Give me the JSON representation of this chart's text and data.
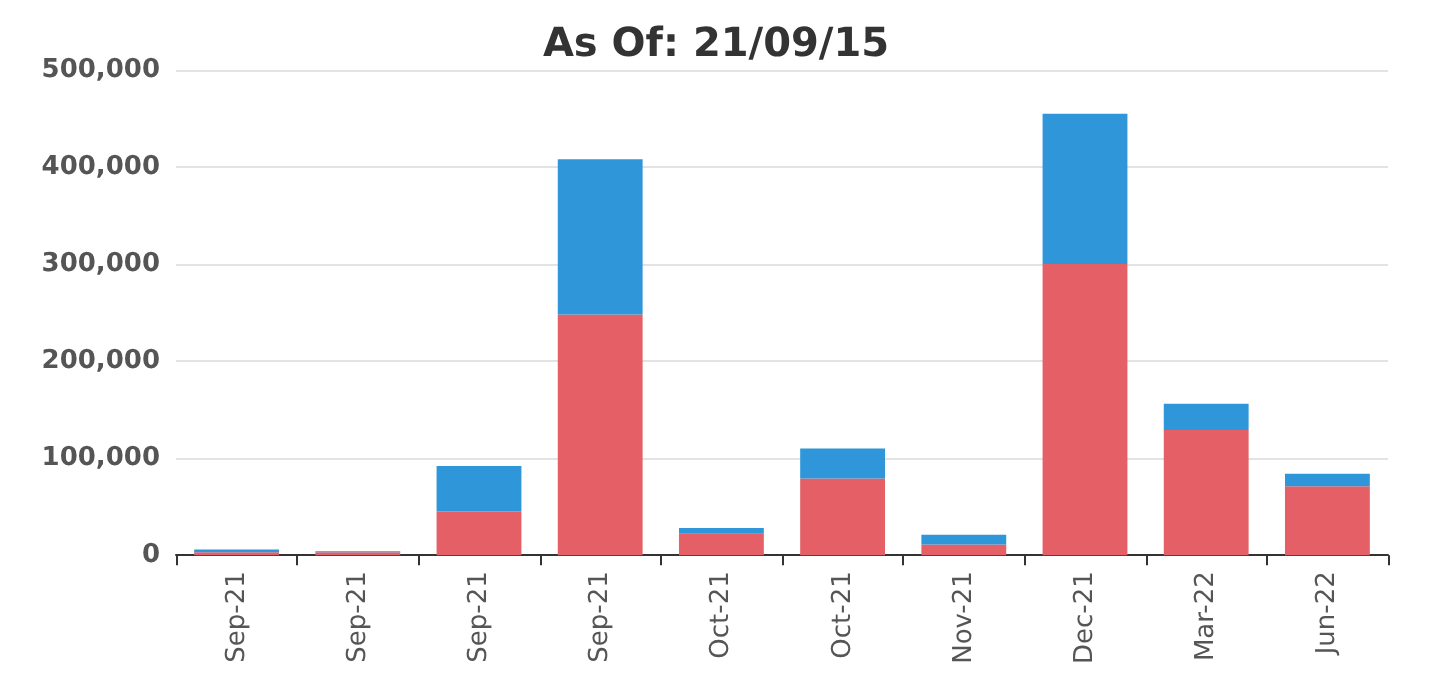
{
  "chart_data": {
    "type": "bar",
    "title": "As Of: 21/09/15",
    "stacked": true,
    "grid": "y",
    "categories": [
      "Sep-21",
      "Sep-21",
      "Sep-21",
      "Sep-21",
      "Oct-21",
      "Oct-21",
      "Nov-21",
      "Dec-21",
      "Mar-22",
      "Jun-22"
    ],
    "series": [
      {
        "color": "#e45f66",
        "values": [
          3000,
          3000,
          45000,
          248000,
          22000,
          79000,
          11000,
          300000,
          129000,
          71000
        ]
      },
      {
        "color": "#2f96d9",
        "values": [
          3000,
          1000,
          47000,
          160000,
          6000,
          31000,
          10000,
          155000,
          27000,
          13000
        ]
      }
    ],
    "ylim": [
      0,
      500000
    ],
    "yticks": [
      0,
      {
        "value": 100000,
        "label": "100,000"
      },
      {
        "value": 200000,
        "label": "200,000"
      },
      {
        "value": 300000,
        "label": "300,000"
      },
      {
        "value": 400000,
        "label": "400,000"
      },
      {
        "value": 500000,
        "label": "500,000"
      }
    ]
  }
}
